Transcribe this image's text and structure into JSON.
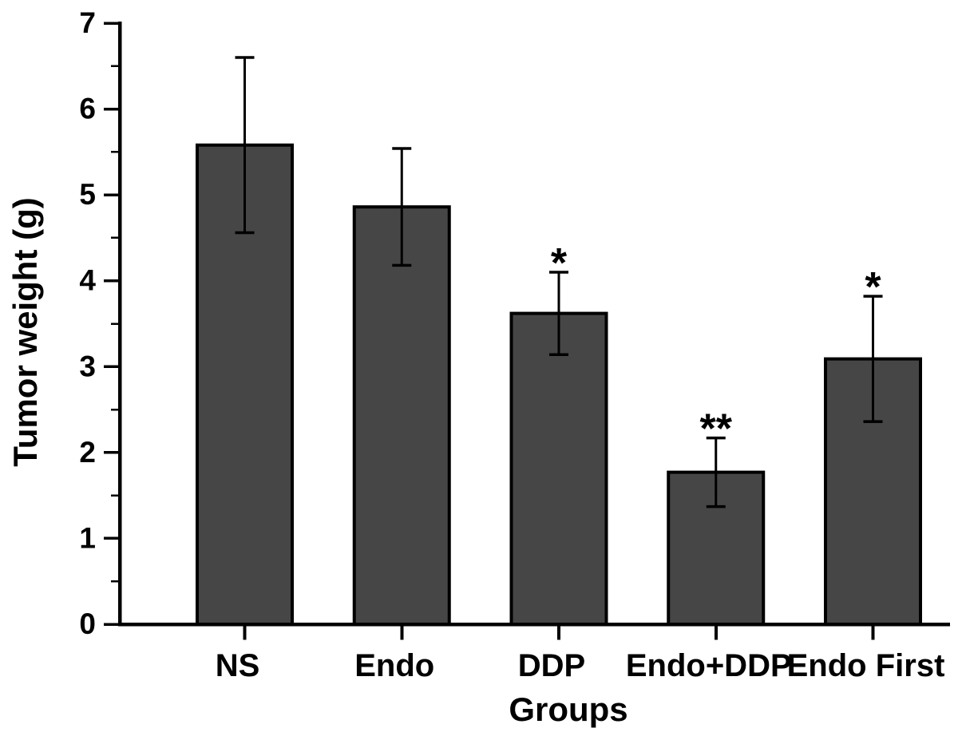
{
  "chart_data": {
    "type": "bar",
    "title": "",
    "xlabel": "Groups",
    "ylabel": "Tumor weight (g)",
    "categories": [
      "NS",
      "Endo",
      "DDP",
      "Endo+DDP",
      "Endo First"
    ],
    "values": [
      5.58,
      4.86,
      3.62,
      1.77,
      3.09
    ],
    "errors": [
      1.02,
      0.68,
      0.48,
      0.4,
      0.73
    ],
    "significance": [
      "",
      "",
      "*",
      "**",
      "*"
    ],
    "ylim": [
      0,
      7
    ],
    "y_major_ticks": [
      0,
      1,
      2,
      3,
      4,
      5,
      6,
      7
    ],
    "y_minor_step": 0.5,
    "grid": false,
    "legend": null,
    "bar_color": "#464646",
    "bar_edge_color": "#000000",
    "axis_color": "#000000",
    "background_color": "#ffffff"
  }
}
